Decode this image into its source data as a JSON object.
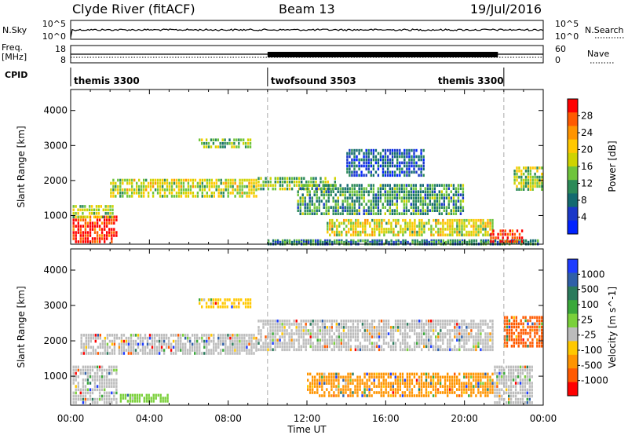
{
  "header": {
    "title": "Clyde River (fitACF)",
    "beam": "Beam 13",
    "date": "19/Jul/2016"
  },
  "noise_panel": {
    "left_label": "N.Sky",
    "left_ticks": [
      "10^5",
      "10^0"
    ],
    "right_ticks": [
      "10^5",
      "10^0"
    ],
    "right_label": "N.Search"
  },
  "freq_panel": {
    "left_label_1": "Freq.",
    "left_label_2": "[MHz]",
    "left_ticks": [
      "18",
      "8"
    ],
    "right_ticks": [
      "60",
      "0"
    ],
    "right_label": "Nave"
  },
  "cpid_panel": {
    "label": "CPID",
    "segments": [
      {
        "name": "themis 3300",
        "start_hour": 0,
        "end_hour": 10.0
      },
      {
        "name": "twofsound 3503",
        "start_hour": 10.0,
        "end_hour": 22.0
      },
      {
        "name": "themis 3300",
        "start_hour": 22.0,
        "end_hour": 24
      }
    ]
  },
  "time_axis": {
    "label": "Time UT",
    "ticks": [
      "00:00",
      "04:00",
      "08:00",
      "12:00",
      "16:00",
      "20:00",
      "00:00"
    ]
  },
  "chart_data": [
    {
      "type": "heatmap",
      "panel": "power",
      "ylabel": "Slant Range [km]",
      "yticks": [
        1000,
        2000,
        3000,
        4000
      ],
      "ylim": [
        180,
        4600
      ],
      "xlim_hours": [
        0,
        24
      ],
      "colorbar": {
        "label": "Power [dB]",
        "ticks": [
          "28",
          "24",
          "20",
          "16",
          "12",
          "8",
          "4"
        ],
        "colors": [
          "#ff0000",
          "#ff5a00",
          "#ff9400",
          "#ffc800",
          "#cfd300",
          "#6fc43c",
          "#2c8a58",
          "#136a70",
          "#1a38c8",
          "#0022ff"
        ]
      },
      "regions": [
        {
          "t0": 0.1,
          "t1": 2.4,
          "r0": 200,
          "r1": 1000,
          "level": 0.95
        },
        {
          "t0": 0.1,
          "t1": 2.2,
          "r0": 900,
          "r1": 1300,
          "level": 0.5
        },
        {
          "t0": 2.0,
          "t1": 9.5,
          "r0": 1500,
          "r1": 2050,
          "level": 0.55
        },
        {
          "t0": 9.5,
          "t1": 13.5,
          "r0": 1700,
          "r1": 2100,
          "level": 0.45
        },
        {
          "t0": 10.0,
          "t1": 23.8,
          "r0": 180,
          "r1": 320,
          "level": 0.3
        },
        {
          "t0": 13.0,
          "t1": 21.5,
          "r0": 400,
          "r1": 900,
          "level": 0.55
        },
        {
          "t0": 21.3,
          "t1": 23.0,
          "r0": 200,
          "r1": 600,
          "level": 0.95
        },
        {
          "t0": 22.5,
          "t1": 24.0,
          "r0": 1700,
          "r1": 2400,
          "level": 0.5
        },
        {
          "t0": 6.5,
          "t1": 9.2,
          "r0": 2900,
          "r1": 3200,
          "level": 0.45
        },
        {
          "t0": 11.5,
          "t1": 20.0,
          "r0": 1000,
          "r1": 1900,
          "level": 0.35
        },
        {
          "t0": 14.0,
          "t1": 18.0,
          "r0": 2100,
          "r1": 2900,
          "level": 0.2
        }
      ]
    },
    {
      "type": "heatmap",
      "panel": "velocity",
      "ylabel": "Slant Range [km]",
      "yticks": [
        1000,
        2000,
        3000,
        4000
      ],
      "ylim": [
        180,
        4600
      ],
      "xlim_hours": [
        0,
        24
      ],
      "colorbar": {
        "label": "Velocity [m s^-1]",
        "ticks": [
          "1000",
          "500",
          "100",
          "25",
          "-25",
          "-100",
          "-500",
          "-1000"
        ],
        "colors": [
          "#1e3cff",
          "#2f5fa8",
          "#2a7a5c",
          "#3aa83a",
          "#7ad03a",
          "#bcbcbc",
          "#ffc800",
          "#ff9400",
          "#ff5a00",
          "#ff0000"
        ]
      },
      "regions": [
        {
          "t0": 0.1,
          "t1": 2.4,
          "r0": 200,
          "r1": 1300,
          "color": "#bcbcbc"
        },
        {
          "t0": 0.5,
          "t1": 9.5,
          "r0": 1600,
          "r1": 2200,
          "color": "#bcbcbc"
        },
        {
          "t0": 9.5,
          "t1": 21.5,
          "r0": 1700,
          "r1": 2600,
          "color": "#bcbcbc"
        },
        {
          "t0": 12.0,
          "t1": 21.5,
          "r0": 400,
          "r1": 1100,
          "color": "#ff9400"
        },
        {
          "t0": 21.5,
          "t1": 23.5,
          "r0": 200,
          "r1": 1300,
          "color": "#bcbcbc"
        },
        {
          "t0": 22.0,
          "t1": 24.0,
          "r0": 1800,
          "r1": 2700,
          "color": "#ff5a00"
        },
        {
          "t0": 6.5,
          "t1": 9.2,
          "r0": 2900,
          "r1": 3200,
          "color": "#ffc800"
        },
        {
          "t0": 2.5,
          "t1": 5.0,
          "r0": 250,
          "r1": 500,
          "color": "#7ad03a"
        }
      ]
    }
  ]
}
